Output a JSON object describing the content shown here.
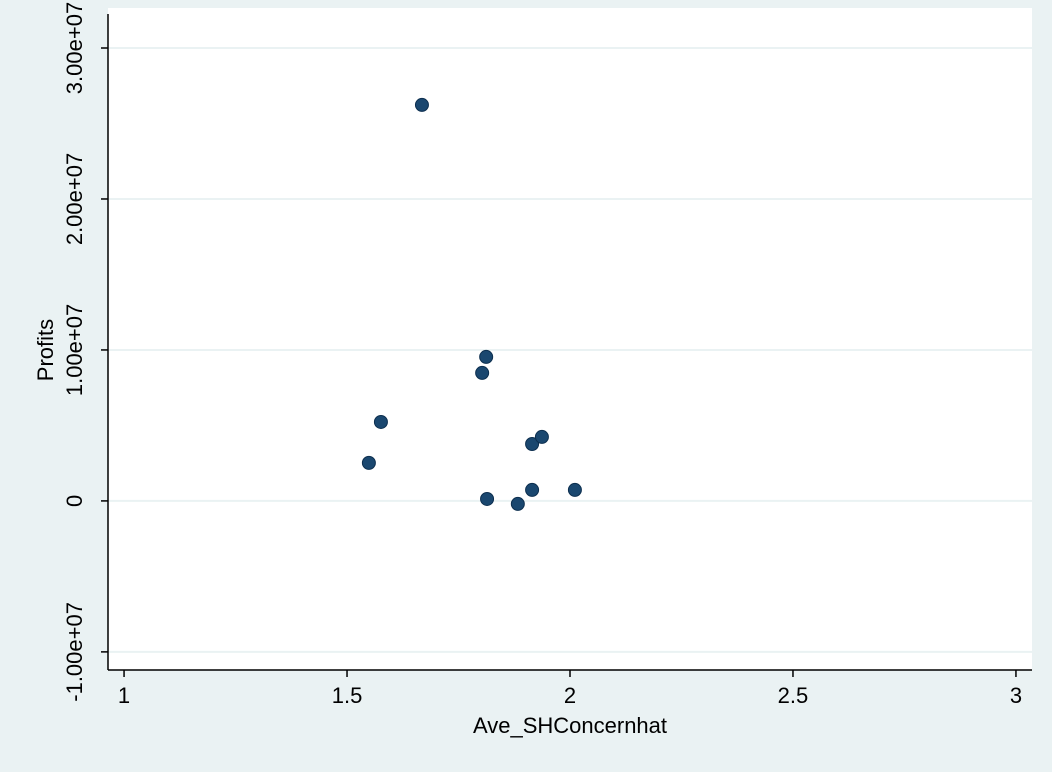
{
  "chart_data": {
    "type": "scatter",
    "x_label": "Ave_SHConcernhat",
    "y_label": "Profits",
    "x": [
      1.668,
      1.812,
      1.803,
      1.576,
      1.549,
      1.915,
      1.937,
      1.814,
      1.883,
      1.915,
      2.011
    ],
    "values": [
      26230000,
      9540000,
      8480000,
      5230000,
      2520000,
      3770000,
      4240000,
      130000,
      -200000,
      730000,
      730000
    ],
    "color": "#1a476f",
    "xlim": [
      0.964,
      3.036
    ],
    "ylim": [
      -11200000,
      32650000
    ],
    "xticks": [
      1,
      1.5,
      2,
      2.5,
      3
    ],
    "yticks": [
      {
        "value": -10000000,
        "label": "-1.00e+07"
      },
      0,
      {
        "value": 10000000,
        "label": "1.00e+07"
      },
      {
        "value": 20000000,
        "label": "2.00e+07"
      },
      {
        "value": 30000000,
        "label": "3.00e+07"
      }
    ],
    "grid": true
  }
}
